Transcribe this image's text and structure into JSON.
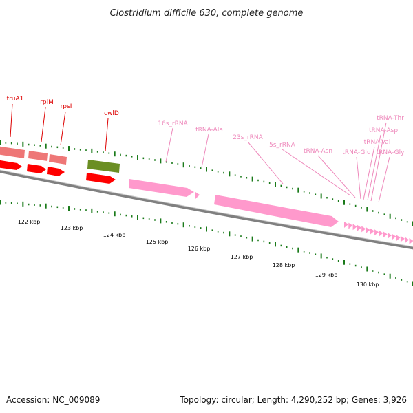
{
  "title": "Clostridium difficile 630, complete genome",
  "footer": {
    "accession": "Accession: NC_009089",
    "summary": "Topology: circular; Length: 4,290,252 bp; Genes: 3,926"
  },
  "colors": {
    "gene_label": "#dd0000",
    "rna_label": "#ee88bb",
    "tick": "#1a7a1a",
    "backbone": "#808080",
    "cds_forward": "#ff0000",
    "cds_forward_light": "#ee7777",
    "cds_other": "#6b8e23",
    "rna_feature": "#ff99cc"
  },
  "ruler": {
    "unit": "kbp",
    "labels": [
      "122 kbp",
      "123 kbp",
      "124 kbp",
      "125 kbp",
      "126 kbp",
      "127 kbp",
      "128 kbp",
      "129 kbp",
      "130 kbp"
    ]
  },
  "gene_labels": [
    "truA1",
    "rplM",
    "rpsI",
    "cwlD"
  ],
  "rna_labels": [
    "16s_rRNA",
    "tRNA-Ala",
    "23s_rRNA",
    "5s_rRNA",
    "tRNA-Asn",
    "tRNA-Glu",
    "tRNA-Val",
    "tRNA-Asp",
    "tRNA-Thr",
    "tRNA-Gly"
  ]
}
